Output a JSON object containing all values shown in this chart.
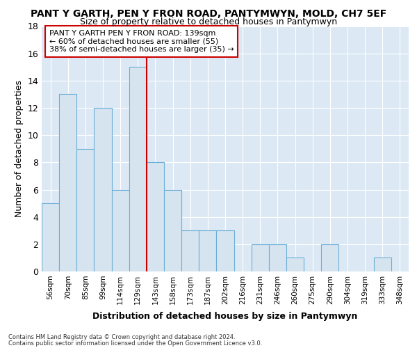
{
  "title": "PANT Y GARTH, PEN Y FRON ROAD, PANTYMWYN, MOLD, CH7 5EF",
  "subtitle": "Size of property relative to detached houses in Pantymwyn",
  "xlabel": "Distribution of detached houses by size in Pantymwyn",
  "ylabel": "Number of detached properties",
  "categories": [
    "56sqm",
    "70sqm",
    "85sqm",
    "99sqm",
    "114sqm",
    "129sqm",
    "143sqm",
    "158sqm",
    "173sqm",
    "187sqm",
    "202sqm",
    "216sqm",
    "231sqm",
    "246sqm",
    "260sqm",
    "275sqm",
    "290sqm",
    "304sqm",
    "319sqm",
    "333sqm",
    "348sqm"
  ],
  "values": [
    5,
    13,
    9,
    12,
    6,
    15,
    8,
    6,
    3,
    3,
    3,
    0,
    2,
    2,
    1,
    0,
    2,
    0,
    0,
    1,
    0
  ],
  "bar_fill_color": "#d6e4f0",
  "bar_edge_color": "#6aaed6",
  "vline_color": "#cc0000",
  "vline_x_index": 6,
  "ylim": [
    0,
    18
  ],
  "yticks": [
    0,
    2,
    4,
    6,
    8,
    10,
    12,
    14,
    16,
    18
  ],
  "annotation_box_text": "PANT Y GARTH PEN Y FRON ROAD: 139sqm\n← 60% of detached houses are smaller (55)\n38% of semi-detached houses are larger (35) →",
  "annotation_box_edge_color": "#cc0000",
  "background_color": "#dce9f5",
  "grid_color": "#ffffff",
  "fig_bg_color": "#ffffff",
  "footer_line1": "Contains HM Land Registry data © Crown copyright and database right 2024.",
  "footer_line2": "Contains public sector information licensed under the Open Government Licence v3.0."
}
